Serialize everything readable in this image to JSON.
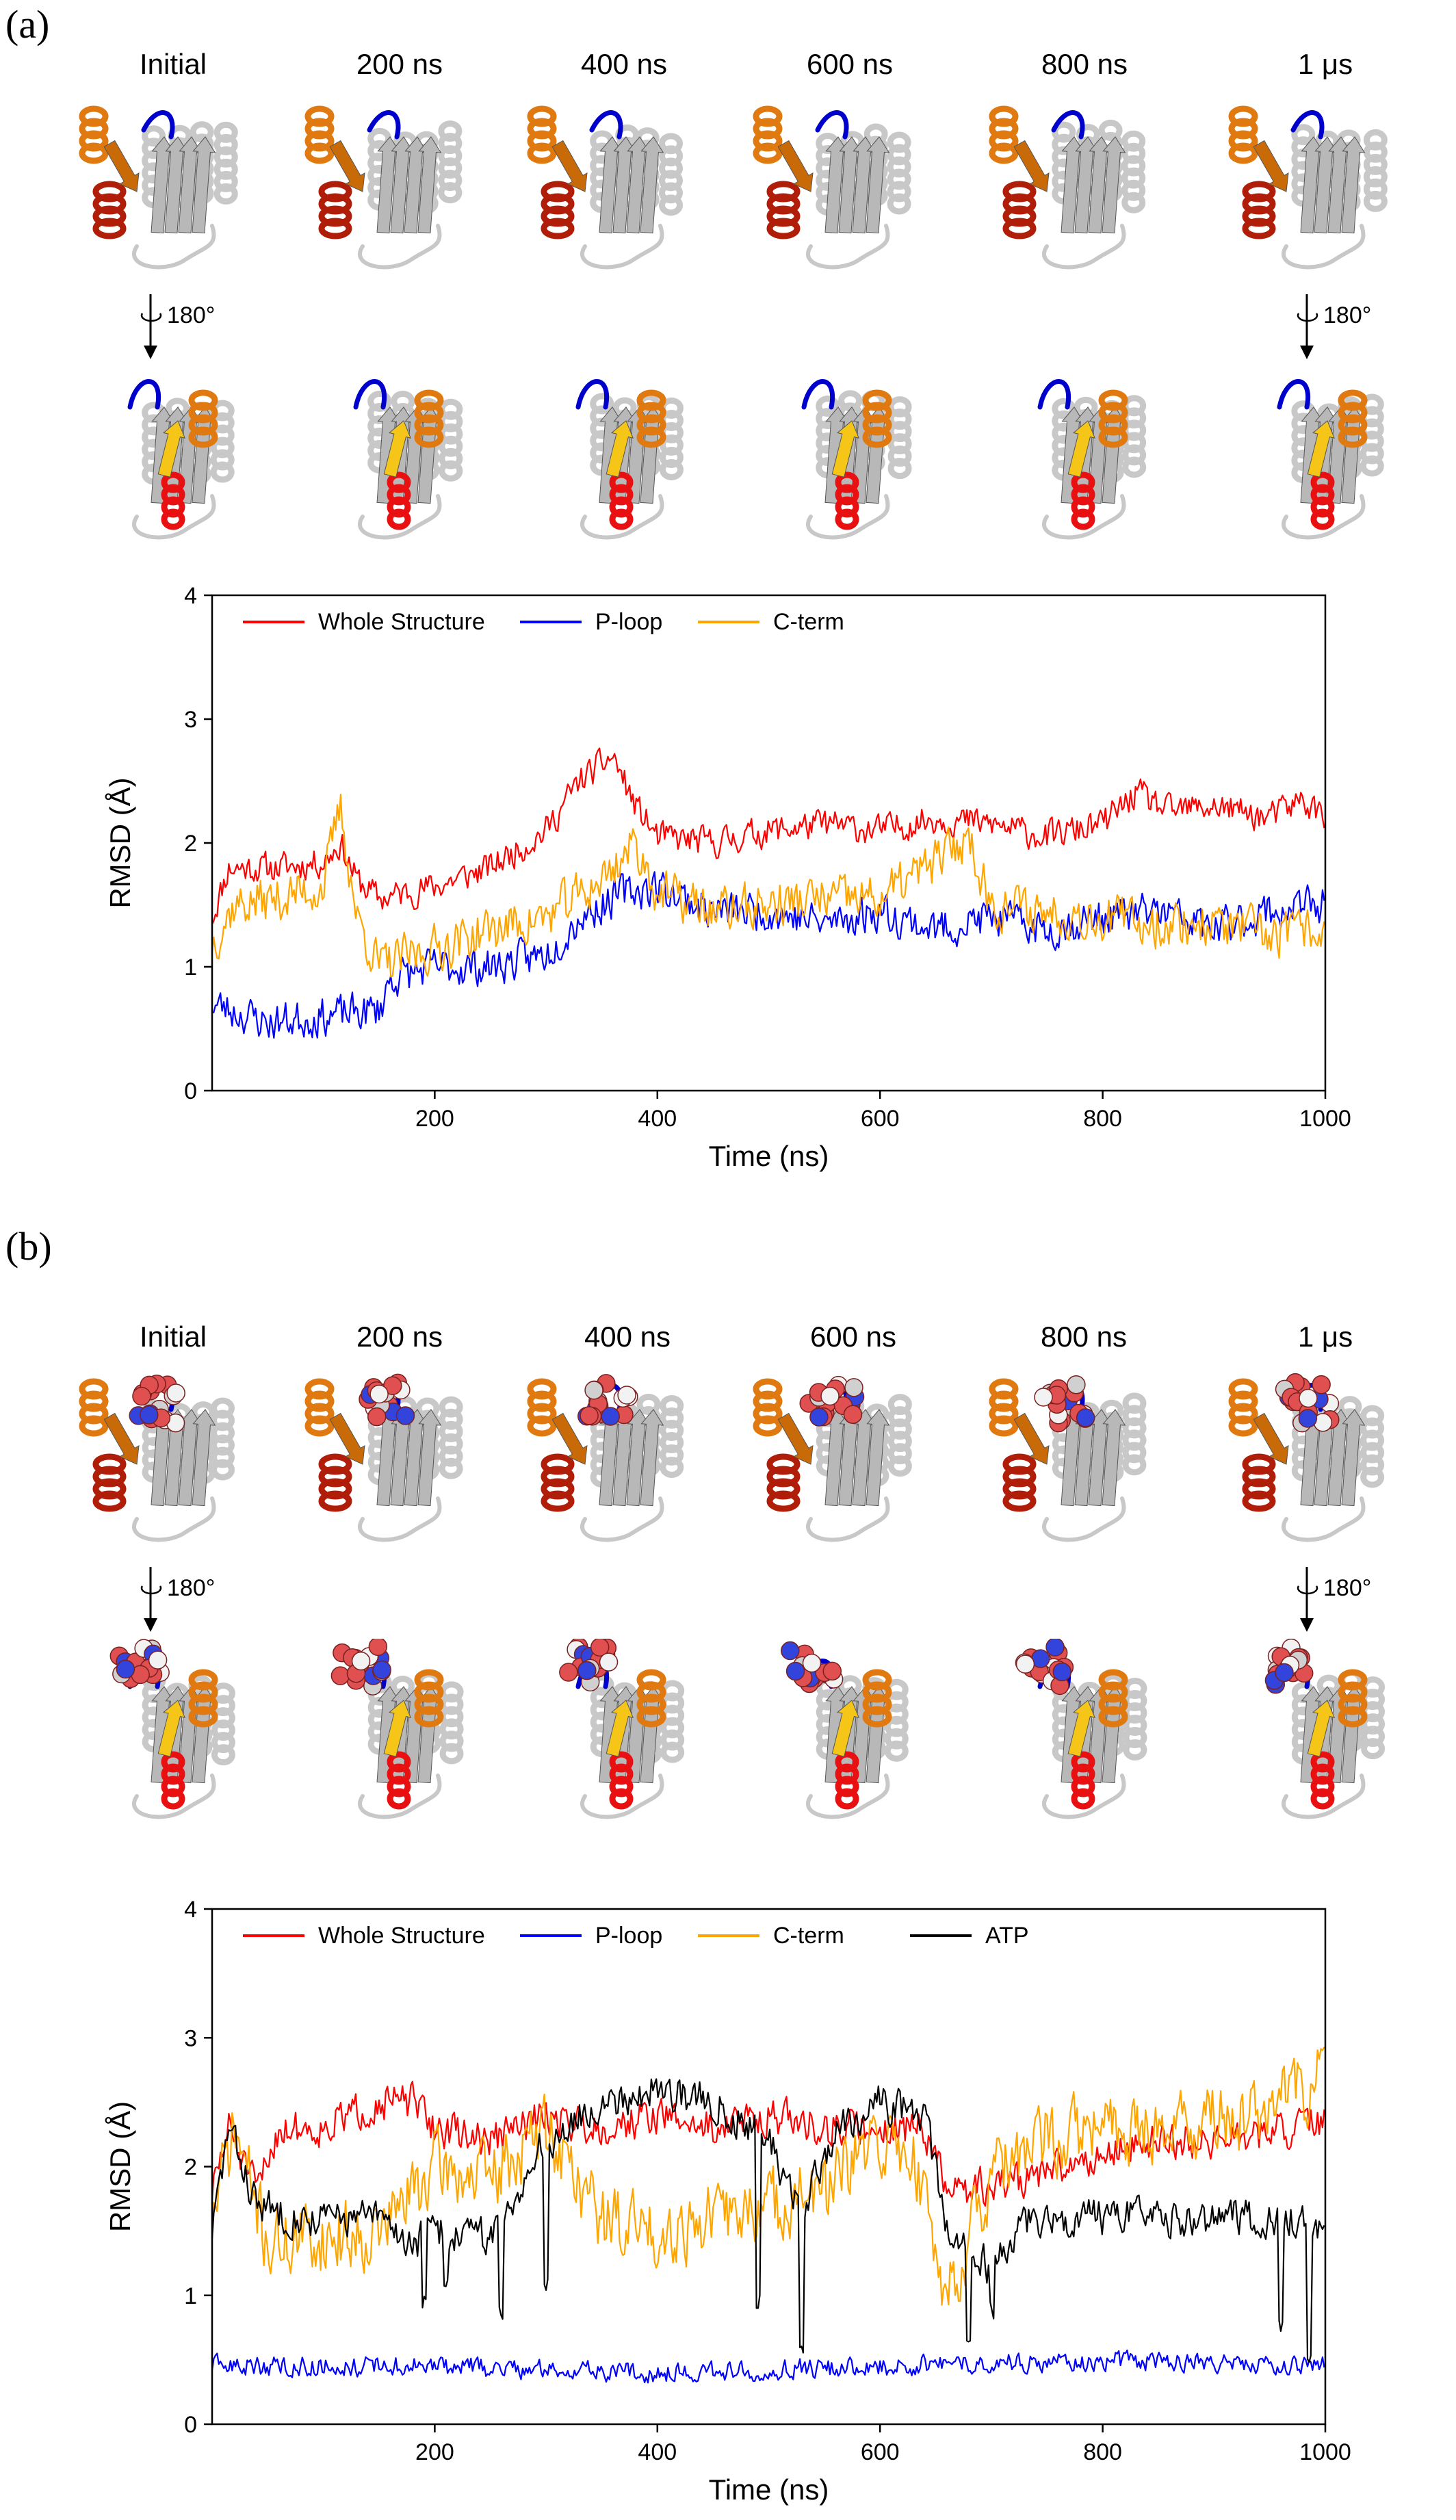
{
  "panel_a": {
    "label": "(a)",
    "snapshots": [
      "Initial",
      "200 ns",
      "400 ns",
      "600 ns",
      "800 ns",
      "1 μs"
    ],
    "rotation_label": "180°"
  },
  "panel_b": {
    "label": "(b)",
    "snapshots": [
      "Initial",
      "200 ns",
      "400 ns",
      "600 ns",
      "800 ns",
      "1 μs"
    ],
    "rotation_label": "180°"
  },
  "colors": {
    "whole": "#ff0000",
    "ploop": "#0000ff",
    "cterm": "#ffa500",
    "atp": "#000000",
    "protein": "#c8c8c8",
    "helix_dark": "#b01e0a",
    "helix_orange": "#e07a10",
    "helix_red": "#e81010",
    "strand_yellow": "#f5c518"
  },
  "chart_data": [
    {
      "type": "line",
      "xlabel": "Time (ns)",
      "ylabel": "RMSD (Å)",
      "xlim": [
        0,
        1000
      ],
      "ylim": [
        0,
        4
      ],
      "xticks": [
        200,
        400,
        600,
        800,
        1000
      ],
      "yticks": [
        0,
        1,
        2,
        3,
        4
      ],
      "legend_position": "top-left",
      "series": [
        {
          "name": "Whole Structure",
          "color": "#ff0000",
          "anchors": [
            [
              0,
              1.4
            ],
            [
              15,
              1.8
            ],
            [
              60,
              1.8
            ],
            [
              100,
              1.85
            ],
            [
              115,
              2.0
            ],
            [
              130,
              1.7
            ],
            [
              150,
              1.55
            ],
            [
              200,
              1.65
            ],
            [
              250,
              1.8
            ],
            [
              300,
              2.1
            ],
            [
              330,
              2.5
            ],
            [
              360,
              2.7
            ],
            [
              380,
              2.3
            ],
            [
              400,
              2.05
            ],
            [
              450,
              2.0
            ],
            [
              500,
              2.1
            ],
            [
              550,
              2.15
            ],
            [
              600,
              2.1
            ],
            [
              650,
              2.2
            ],
            [
              700,
              2.15
            ],
            [
              750,
              2.05
            ],
            [
              800,
              2.15
            ],
            [
              830,
              2.4
            ],
            [
              860,
              2.25
            ],
            [
              900,
              2.3
            ],
            [
              950,
              2.2
            ],
            [
              980,
              2.35
            ],
            [
              1000,
              2.2
            ]
          ],
          "noise": 0.11,
          "seed": 11
        },
        {
          "name": "P-loop",
          "color": "#0000ff",
          "anchors": [
            [
              0,
              0.7
            ],
            [
              50,
              0.55
            ],
            [
              100,
              0.6
            ],
            [
              150,
              0.65
            ],
            [
              160,
              0.9
            ],
            [
              200,
              1.0
            ],
            [
              250,
              1.0
            ],
            [
              300,
              1.1
            ],
            [
              330,
              1.4
            ],
            [
              370,
              1.6
            ],
            [
              400,
              1.65
            ],
            [
              450,
              1.45
            ],
            [
              500,
              1.45
            ],
            [
              550,
              1.35
            ],
            [
              600,
              1.45
            ],
            [
              650,
              1.3
            ],
            [
              700,
              1.4
            ],
            [
              750,
              1.3
            ],
            [
              800,
              1.4
            ],
            [
              850,
              1.45
            ],
            [
              900,
              1.3
            ],
            [
              950,
              1.45
            ],
            [
              1000,
              1.5
            ]
          ],
          "noise": 0.14,
          "seed": 23
        },
        {
          "name": "C-term",
          "color": "#ffa500",
          "anchors": [
            [
              0,
              1.2
            ],
            [
              20,
              1.5
            ],
            [
              60,
              1.55
            ],
            [
              100,
              1.65
            ],
            [
              115,
              2.3
            ],
            [
              130,
              1.4
            ],
            [
              150,
              1.0
            ],
            [
              200,
              1.15
            ],
            [
              250,
              1.3
            ],
            [
              300,
              1.4
            ],
            [
              350,
              1.7
            ],
            [
              380,
              2.0
            ],
            [
              400,
              1.6
            ],
            [
              450,
              1.45
            ],
            [
              500,
              1.5
            ],
            [
              550,
              1.55
            ],
            [
              600,
              1.55
            ],
            [
              650,
              1.85
            ],
            [
              680,
              2.05
            ],
            [
              700,
              1.5
            ],
            [
              750,
              1.45
            ],
            [
              800,
              1.4
            ],
            [
              850,
              1.35
            ],
            [
              900,
              1.35
            ],
            [
              950,
              1.25
            ],
            [
              1000,
              1.3
            ]
          ],
          "noise": 0.17,
          "seed": 37
        }
      ]
    },
    {
      "type": "line",
      "xlabel": "Time (ns)",
      "ylabel": "RMSD (Å)",
      "xlim": [
        0,
        1000
      ],
      "ylim": [
        0,
        4
      ],
      "xticks": [
        200,
        400,
        600,
        800,
        1000
      ],
      "yticks": [
        0,
        1,
        2,
        3,
        4
      ],
      "legend_position": "top-left",
      "series": [
        {
          "name": "Whole Structure",
          "color": "#ff0000",
          "anchors": [
            [
              0,
              1.8
            ],
            [
              15,
              2.3
            ],
            [
              40,
              1.8
            ],
            [
              60,
              2.3
            ],
            [
              100,
              2.3
            ],
            [
              150,
              2.5
            ],
            [
              180,
              2.5
            ],
            [
              200,
              2.3
            ],
            [
              250,
              2.2
            ],
            [
              300,
              2.4
            ],
            [
              350,
              2.3
            ],
            [
              400,
              2.4
            ],
            [
              450,
              2.3
            ],
            [
              500,
              2.4
            ],
            [
              550,
              2.3
            ],
            [
              600,
              2.3
            ],
            [
              640,
              2.3
            ],
            [
              660,
              1.8
            ],
            [
              700,
              1.85
            ],
            [
              750,
              1.95
            ],
            [
              800,
              2.1
            ],
            [
              850,
              2.2
            ],
            [
              900,
              2.2
            ],
            [
              950,
              2.25
            ],
            [
              1000,
              2.35
            ]
          ],
          "noise": 0.13,
          "seed": 51
        },
        {
          "name": "P-loop",
          "color": "#0000ff",
          "anchors": [
            [
              0,
              0.45
            ],
            [
              200,
              0.45
            ],
            [
              400,
              0.4
            ],
            [
              600,
              0.45
            ],
            [
              800,
              0.5
            ],
            [
              1000,
              0.45
            ]
          ],
          "noise": 0.07,
          "seed": 63
        },
        {
          "name": "C-term",
          "color": "#ffa500",
          "anchors": [
            [
              0,
              1.6
            ],
            [
              20,
              2.3
            ],
            [
              50,
              1.4
            ],
            [
              100,
              1.45
            ],
            [
              150,
              1.5
            ],
            [
              200,
              2.0
            ],
            [
              250,
              1.9
            ],
            [
              300,
              2.3
            ],
            [
              350,
              1.6
            ],
            [
              400,
              1.5
            ],
            [
              450,
              1.6
            ],
            [
              500,
              1.7
            ],
            [
              550,
              1.8
            ],
            [
              600,
              2.2
            ],
            [
              630,
              2.1
            ],
            [
              660,
              1.0
            ],
            [
              700,
              1.9
            ],
            [
              750,
              2.2
            ],
            [
              800,
              2.3
            ],
            [
              850,
              2.3
            ],
            [
              900,
              2.35
            ],
            [
              950,
              2.45
            ],
            [
              1000,
              2.7
            ]
          ],
          "noise": 0.25,
          "seed": 71
        },
        {
          "name": "ATP",
          "color": "#000000",
          "anchors": [
            [
              0,
              1.5
            ],
            [
              15,
              2.3
            ],
            [
              40,
              1.7
            ],
            [
              80,
              1.6
            ],
            [
              150,
              1.6
            ],
            [
              180,
              1.4
            ],
            [
              200,
              1.5
            ],
            [
              250,
              1.45
            ],
            [
              300,
              2.2
            ],
            [
              350,
              2.5
            ],
            [
              400,
              2.6
            ],
            [
              450,
              2.5
            ],
            [
              500,
              2.2
            ],
            [
              530,
              1.6
            ],
            [
              560,
              2.3
            ],
            [
              600,
              2.5
            ],
            [
              640,
              2.4
            ],
            [
              660,
              1.5
            ],
            [
              700,
              1.2
            ],
            [
              730,
              1.6
            ],
            [
              800,
              1.6
            ],
            [
              900,
              1.6
            ],
            [
              950,
              1.6
            ],
            [
              1000,
              1.55
            ]
          ],
          "noise": 0.13,
          "seed": 83,
          "dips": [
            [
              190,
              0.9
            ],
            [
              210,
              1.0
            ],
            [
              260,
              0.8
            ],
            [
              300,
              1.0
            ],
            [
              490,
              0.9
            ],
            [
              530,
              0.5
            ],
            [
              680,
              0.6
            ],
            [
              700,
              0.8
            ],
            [
              960,
              0.7
            ],
            [
              985,
              0.4
            ]
          ]
        }
      ]
    }
  ]
}
